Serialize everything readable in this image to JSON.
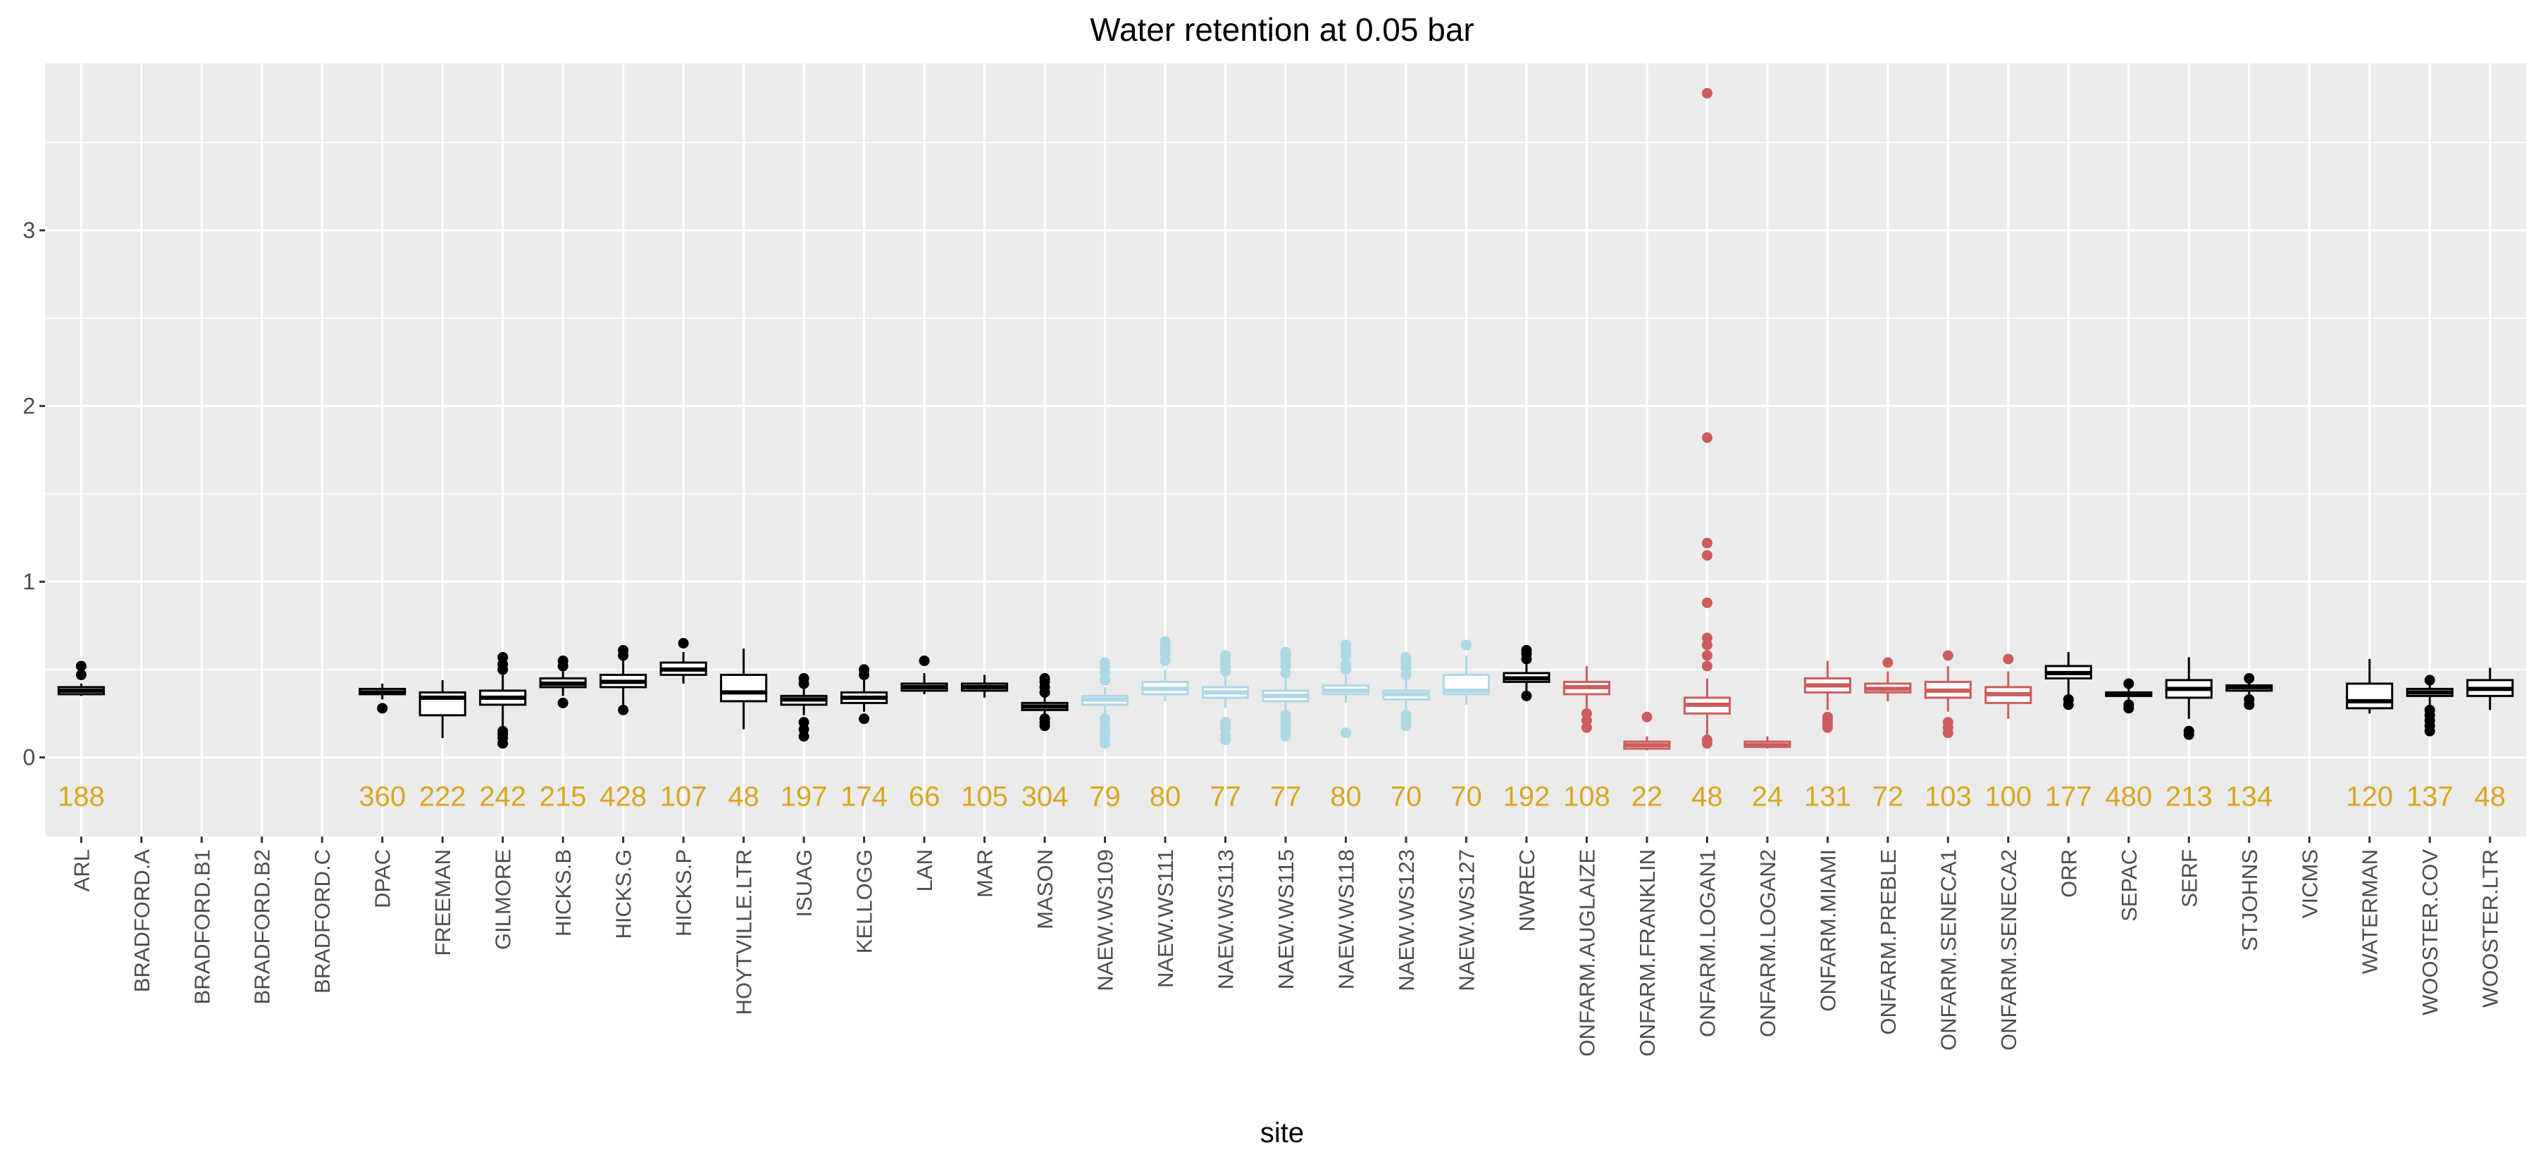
{
  "chart_data": {
    "type": "boxplot",
    "title": "Water retention at 0.05 bar",
    "xlabel": "site",
    "ylabel": "",
    "ylim": [
      -0.45,
      3.95
    ],
    "yticks": [
      0,
      1,
      2,
      3
    ],
    "grid": true,
    "count_label_y": -0.22,
    "colors": {
      "default": "#000000",
      "naew": "#add8e6",
      "onfarm": "#cd5c5c",
      "count": "#daa520",
      "panel": "#ebebeb",
      "grid": "#ffffff"
    },
    "series": [
      {
        "site": "ARL",
        "group": "default",
        "n": "188",
        "box": {
          "min": 0.35,
          "q1": 0.36,
          "median": 0.38,
          "q3": 0.4,
          "max": 0.42
        },
        "outliers": [
          0.47,
          0.52
        ]
      },
      {
        "site": "BRADFORD.A",
        "group": "default",
        "n": "",
        "box": null,
        "outliers": []
      },
      {
        "site": "BRADFORD.B1",
        "group": "default",
        "n": "",
        "box": null,
        "outliers": []
      },
      {
        "site": "BRADFORD.B2",
        "group": "default",
        "n": "",
        "box": null,
        "outliers": []
      },
      {
        "site": "BRADFORD.C",
        "group": "default",
        "n": "",
        "box": null,
        "outliers": []
      },
      {
        "site": "DPAC",
        "group": "default",
        "n": "360",
        "box": {
          "min": 0.33,
          "q1": 0.36,
          "median": 0.37,
          "q3": 0.39,
          "max": 0.42
        },
        "outliers": [
          0.28
        ]
      },
      {
        "site": "FREEMAN",
        "group": "default",
        "n": "222",
        "box": {
          "min": 0.11,
          "q1": 0.24,
          "median": 0.34,
          "q3": 0.37,
          "max": 0.44
        },
        "outliers": []
      },
      {
        "site": "GILMORE",
        "group": "default",
        "n": "242",
        "box": {
          "min": 0.18,
          "q1": 0.3,
          "median": 0.34,
          "q3": 0.38,
          "max": 0.47
        },
        "outliers": [
          0.08,
          0.11,
          0.13,
          0.15,
          0.5,
          0.53,
          0.57
        ]
      },
      {
        "site": "HICKS.B",
        "group": "default",
        "n": "215",
        "box": {
          "min": 0.35,
          "q1": 0.4,
          "median": 0.42,
          "q3": 0.45,
          "max": 0.5
        },
        "outliers": [
          0.31,
          0.52,
          0.55
        ]
      },
      {
        "site": "HICKS.G",
        "group": "default",
        "n": "428",
        "box": {
          "min": 0.3,
          "q1": 0.4,
          "median": 0.43,
          "q3": 0.47,
          "max": 0.56
        },
        "outliers": [
          0.27,
          0.58,
          0.61
        ]
      },
      {
        "site": "HICKS.P",
        "group": "default",
        "n": "107",
        "box": {
          "min": 0.42,
          "q1": 0.47,
          "median": 0.5,
          "q3": 0.54,
          "max": 0.6
        },
        "outliers": [
          0.65
        ]
      },
      {
        "site": "HOYTVILLE.LTR",
        "group": "default",
        "n": "48",
        "box": {
          "min": 0.16,
          "q1": 0.32,
          "median": 0.37,
          "q3": 0.47,
          "max": 0.62
        },
        "outliers": []
      },
      {
        "site": "ISUAG",
        "group": "default",
        "n": "197",
        "box": {
          "min": 0.24,
          "q1": 0.3,
          "median": 0.33,
          "q3": 0.35,
          "max": 0.4
        },
        "outliers": [
          0.12,
          0.16,
          0.2,
          0.42,
          0.45
        ]
      },
      {
        "site": "KELLOGG",
        "group": "default",
        "n": "174",
        "box": {
          "min": 0.26,
          "q1": 0.31,
          "median": 0.34,
          "q3": 0.37,
          "max": 0.44
        },
        "outliers": [
          0.22,
          0.47,
          0.5
        ]
      },
      {
        "site": "LAN",
        "group": "default",
        "n": "66",
        "box": {
          "min": 0.36,
          "q1": 0.38,
          "median": 0.4,
          "q3": 0.42,
          "max": 0.48
        },
        "outliers": [
          0.55
        ]
      },
      {
        "site": "MAR",
        "group": "default",
        "n": "105",
        "box": {
          "min": 0.34,
          "q1": 0.38,
          "median": 0.4,
          "q3": 0.42,
          "max": 0.47
        },
        "outliers": []
      },
      {
        "site": "MASON",
        "group": "default",
        "n": "304",
        "box": {
          "min": 0.24,
          "q1": 0.27,
          "median": 0.29,
          "q3": 0.31,
          "max": 0.35
        },
        "outliers": [
          0.18,
          0.2,
          0.22,
          0.37,
          0.4,
          0.43,
          0.45
        ]
      },
      {
        "site": "NAEW.WS109",
        "group": "naew",
        "n": "79",
        "box": {
          "min": 0.25,
          "q1": 0.3,
          "median": 0.33,
          "q3": 0.35,
          "max": 0.4
        },
        "outliers": [
          0.08,
          0.1,
          0.13,
          0.16,
          0.19,
          0.22,
          0.44,
          0.48,
          0.51,
          0.54
        ]
      },
      {
        "site": "NAEW.WS111",
        "group": "naew",
        "n": "80",
        "box": {
          "min": 0.32,
          "q1": 0.36,
          "median": 0.39,
          "q3": 0.43,
          "max": 0.5
        },
        "outliers": [
          0.55,
          0.59,
          0.61,
          0.64,
          0.66
        ]
      },
      {
        "site": "NAEW.WS113",
        "group": "naew",
        "n": "77",
        "box": {
          "min": 0.28,
          "q1": 0.34,
          "median": 0.37,
          "q3": 0.4,
          "max": 0.46
        },
        "outliers": [
          0.1,
          0.13,
          0.17,
          0.2,
          0.49,
          0.52,
          0.55,
          0.58
        ]
      },
      {
        "site": "NAEW.WS115",
        "group": "naew",
        "n": "77",
        "box": {
          "min": 0.26,
          "q1": 0.32,
          "median": 0.35,
          "q3": 0.38,
          "max": 0.45
        },
        "outliers": [
          0.12,
          0.15,
          0.18,
          0.21,
          0.24,
          0.48,
          0.52,
          0.55,
          0.58,
          0.6
        ]
      },
      {
        "site": "NAEW.WS118",
        "group": "naew",
        "n": "80",
        "box": {
          "min": 0.31,
          "q1": 0.36,
          "median": 0.38,
          "q3": 0.41,
          "max": 0.47
        },
        "outliers": [
          0.14,
          0.5,
          0.53,
          0.58,
          0.61,
          0.64
        ]
      },
      {
        "site": "NAEW.WS123",
        "group": "naew",
        "n": "70",
        "box": {
          "min": 0.26,
          "q1": 0.33,
          "median": 0.36,
          "q3": 0.38,
          "max": 0.44
        },
        "outliers": [
          0.18,
          0.21,
          0.24,
          0.47,
          0.51,
          0.54,
          0.57
        ]
      },
      {
        "site": "NAEW.WS127",
        "group": "naew",
        "n": "70",
        "box": {
          "min": 0.3,
          "q1": 0.36,
          "median": 0.38,
          "q3": 0.47,
          "max": 0.58
        },
        "outliers": [
          0.64
        ]
      },
      {
        "site": "NWREC",
        "group": "default",
        "n": "192",
        "box": {
          "min": 0.38,
          "q1": 0.43,
          "median": 0.45,
          "q3": 0.48,
          "max": 0.53
        },
        "outliers": [
          0.35,
          0.56,
          0.59,
          0.61
        ]
      },
      {
        "site": "ONFARM.AUGLAIZE",
        "group": "onfarm",
        "n": "108",
        "box": {
          "min": 0.28,
          "q1": 0.36,
          "median": 0.4,
          "q3": 0.43,
          "max": 0.52
        },
        "outliers": [
          0.17,
          0.21,
          0.25
        ]
      },
      {
        "site": "ONFARM.FRANKLIN",
        "group": "onfarm",
        "n": "22",
        "box": {
          "min": 0.04,
          "q1": 0.05,
          "median": 0.07,
          "q3": 0.09,
          "max": 0.12
        },
        "outliers": [
          0.23
        ]
      },
      {
        "site": "ONFARM.LOGAN1",
        "group": "onfarm",
        "n": "48",
        "box": {
          "min": 0.13,
          "q1": 0.25,
          "median": 0.3,
          "q3": 0.34,
          "max": 0.45
        },
        "outliers": [
          0.08,
          0.1,
          0.52,
          0.58,
          0.64,
          0.68,
          0.88,
          1.15,
          1.22,
          1.82,
          3.78
        ]
      },
      {
        "site": "ONFARM.LOGAN2",
        "group": "onfarm",
        "n": "24",
        "box": {
          "min": 0.05,
          "q1": 0.06,
          "median": 0.07,
          "q3": 0.09,
          "max": 0.12
        },
        "outliers": []
      },
      {
        "site": "ONFARM.MIAMI",
        "group": "onfarm",
        "n": "131",
        "box": {
          "min": 0.27,
          "q1": 0.37,
          "median": 0.41,
          "q3": 0.45,
          "max": 0.55
        },
        "outliers": [
          0.17,
          0.19,
          0.21,
          0.23
        ]
      },
      {
        "site": "ONFARM.PREBLE",
        "group": "onfarm",
        "n": "72",
        "box": {
          "min": 0.32,
          "q1": 0.37,
          "median": 0.39,
          "q3": 0.42,
          "max": 0.49
        },
        "outliers": [
          0.54
        ]
      },
      {
        "site": "ONFARM.SENECA1",
        "group": "onfarm",
        "n": "103",
        "box": {
          "min": 0.26,
          "q1": 0.34,
          "median": 0.38,
          "q3": 0.43,
          "max": 0.52
        },
        "outliers": [
          0.14,
          0.17,
          0.2,
          0.58
        ]
      },
      {
        "site": "ONFARM.SENECA2",
        "group": "onfarm",
        "n": "100",
        "box": {
          "min": 0.22,
          "q1": 0.31,
          "median": 0.36,
          "q3": 0.4,
          "max": 0.49
        },
        "outliers": [
          0.56
        ]
      },
      {
        "site": "ORR",
        "group": "default",
        "n": "177",
        "box": {
          "min": 0.36,
          "q1": 0.45,
          "median": 0.48,
          "q3": 0.52,
          "max": 0.6
        },
        "outliers": [
          0.3,
          0.33
        ]
      },
      {
        "site": "SEPAC",
        "group": "default",
        "n": "480",
        "box": {
          "min": 0.32,
          "q1": 0.35,
          "median": 0.36,
          "q3": 0.37,
          "max": 0.4
        },
        "outliers": [
          0.28,
          0.3,
          0.42
        ]
      },
      {
        "site": "SERF",
        "group": "default",
        "n": "213",
        "box": {
          "min": 0.22,
          "q1": 0.34,
          "median": 0.39,
          "q3": 0.44,
          "max": 0.57
        },
        "outliers": [
          0.13,
          0.15
        ]
      },
      {
        "site": "STJOHNS",
        "group": "default",
        "n": "134",
        "box": {
          "min": 0.36,
          "q1": 0.38,
          "median": 0.4,
          "q3": 0.41,
          "max": 0.43
        },
        "outliers": [
          0.3,
          0.33,
          0.45
        ]
      },
      {
        "site": "VICMS",
        "group": "default",
        "n": "",
        "box": null,
        "outliers": []
      },
      {
        "site": "WATERMAN",
        "group": "default",
        "n": "120",
        "box": {
          "min": 0.25,
          "q1": 0.28,
          "median": 0.32,
          "q3": 0.42,
          "max": 0.56
        },
        "outliers": []
      },
      {
        "site": "WOOSTER.COV",
        "group": "default",
        "n": "137",
        "box": {
          "min": 0.3,
          "q1": 0.35,
          "median": 0.37,
          "q3": 0.39,
          "max": 0.42
        },
        "outliers": [
          0.15,
          0.18,
          0.21,
          0.24,
          0.27,
          0.44
        ]
      },
      {
        "site": "WOOSTER.LTR",
        "group": "default",
        "n": "48",
        "box": {
          "min": 0.27,
          "q1": 0.35,
          "median": 0.39,
          "q3": 0.44,
          "max": 0.51
        },
        "outliers": []
      }
    ]
  }
}
